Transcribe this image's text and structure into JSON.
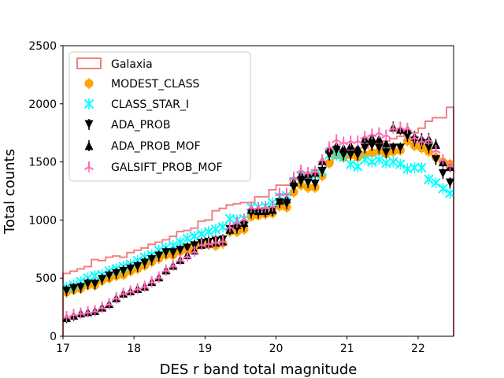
{
  "chart_data": {
    "type": "scatter",
    "title": "",
    "xlabel": "DES r band total magnitude",
    "ylabel": "Total counts",
    "xlim": [
      17,
      22.5
    ],
    "ylim": [
      0,
      2500
    ],
    "xticks": [
      "17",
      "18",
      "19",
      "20",
      "21",
      "22"
    ],
    "xtick_values": [
      17,
      18,
      19,
      20,
      21,
      22
    ],
    "yticks": [
      "0",
      "500",
      "1000",
      "1500",
      "2000",
      "2500"
    ],
    "ytick_values": [
      0,
      500,
      1000,
      1500,
      2000,
      2500
    ],
    "grid": false,
    "legend_position": "upper-left",
    "histogram": {
      "name": "Galaxia",
      "color": "#f28080",
      "bin_edges": [
        17.0,
        17.1,
        17.2,
        17.3,
        17.4,
        17.5,
        17.6,
        17.7,
        17.8,
        17.9,
        18.0,
        18.1,
        18.2,
        18.3,
        18.4,
        18.5,
        18.6,
        18.7,
        18.8,
        18.9,
        19.0,
        19.1,
        19.2,
        19.3,
        19.4,
        19.5,
        19.6,
        19.7,
        19.8,
        19.9,
        20.0,
        20.1,
        20.2,
        20.3,
        20.4,
        20.5,
        20.6,
        20.7,
        20.8,
        20.9,
        21.0,
        21.1,
        21.2,
        21.3,
        21.4,
        21.5,
        21.6,
        21.7,
        21.8,
        21.9,
        22.0,
        22.1,
        22.2,
        22.3,
        22.4,
        22.5
      ],
      "counts": [
        540,
        560,
        580,
        600,
        660,
        650,
        680,
        690,
        680,
        720,
        740,
        760,
        790,
        810,
        830,
        860,
        900,
        910,
        930,
        990,
        1000,
        1080,
        1100,
        1130,
        1140,
        1150,
        1150,
        1200,
        1200,
        1260,
        1300,
        1300,
        1360,
        1370,
        1400,
        1430,
        1450,
        1500,
        1530,
        1550,
        1590,
        1620,
        1620,
        1650,
        1660,
        1680,
        1700,
        1720,
        1750,
        1750,
        1790,
        1850,
        1880,
        1880,
        1970
      ]
    },
    "x": [
      17.05,
      17.15,
      17.25,
      17.35,
      17.45,
      17.55,
      17.65,
      17.75,
      17.85,
      17.95,
      18.05,
      18.15,
      18.25,
      18.35,
      18.45,
      18.55,
      18.65,
      18.75,
      18.85,
      18.95,
      19.05,
      19.15,
      19.25,
      19.35,
      19.45,
      19.55,
      19.65,
      19.75,
      19.85,
      19.95,
      20.05,
      20.15,
      20.25,
      20.35,
      20.45,
      20.55,
      20.65,
      20.75,
      20.85,
      20.95,
      21.05,
      21.15,
      21.25,
      21.35,
      21.45,
      21.55,
      21.65,
      21.75,
      21.85,
      21.95,
      22.05,
      22.15,
      22.25,
      22.35,
      22.45
    ],
    "series": [
      {
        "name": "MODEST_CLASS",
        "color": "#ffa500",
        "marker": "circle",
        "values": [
          380,
          400,
          410,
          440,
          440,
          480,
          500,
          520,
          530,
          560,
          580,
          610,
          640,
          670,
          700,
          700,
          730,
          740,
          760,
          790,
          790,
          780,
          800,
          900,
          900,
          920,
          1030,
          1040,
          1050,
          1060,
          1120,
          1110,
          1240,
          1300,
          1280,
          1280,
          1380,
          1490,
          1560,
          1540,
          1560,
          1540,
          1560,
          1580,
          1590,
          1570,
          1590,
          1600,
          1680,
          1640,
          1620,
          1590,
          1540,
          1500,
          1480
        ]
      },
      {
        "name": "CLASS_STAR_I",
        "color": "#00ffff",
        "marker": "x",
        "values": [
          420,
          440,
          470,
          500,
          520,
          530,
          560,
          580,
          600,
          620,
          650,
          680,
          700,
          740,
          760,
          780,
          810,
          840,
          860,
          880,
          900,
          920,
          940,
          1010,
          1000,
          1010,
          1110,
          1110,
          1120,
          1150,
          1200,
          1210,
          1330,
          1380,
          1380,
          1390,
          1420,
          1560,
          1560,
          1540,
          1480,
          1460,
          1520,
          1500,
          1520,
          1490,
          1500,
          1480,
          1440,
          1450,
          1450,
          1350,
          1320,
          1270,
          1230
        ]
      },
      {
        "name": "ADA_PROB",
        "color": "#000000",
        "marker": "triangle-down",
        "values": [
          390,
          410,
          420,
          450,
          450,
          490,
          520,
          540,
          560,
          580,
          600,
          630,
          660,
          690,
          720,
          720,
          740,
          760,
          780,
          800,
          810,
          820,
          830,
          920,
          930,
          950,
          1060,
          1060,
          1070,
          1080,
          1150,
          1140,
          1280,
          1330,
          1320,
          1310,
          1420,
          1560,
          1600,
          1560,
          1560,
          1560,
          1620,
          1640,
          1620,
          1580,
          1620,
          1620,
          1720,
          1680,
          1660,
          1620,
          1520,
          1400,
          1320
        ]
      },
      {
        "name": "ADA_PROB_MOF",
        "color": "#000000",
        "marker": "triangle-up",
        "values": [
          160,
          180,
          200,
          210,
          220,
          250,
          280,
          330,
          370,
          390,
          410,
          430,
          470,
          510,
          570,
          610,
          660,
          700,
          740,
          790,
          800,
          810,
          820,
          920,
          960,
          980,
          1090,
          1080,
          1080,
          1090,
          1170,
          1180,
          1330,
          1390,
          1400,
          1410,
          1510,
          1610,
          1640,
          1620,
          1640,
          1620,
          1700,
          1710,
          1700,
          1660,
          1800,
          1780,
          1780,
          1720,
          1700,
          1700,
          1650,
          1500,
          1460
        ]
      },
      {
        "name": "GALSIFT_PROB_MOF",
        "color": "#ff69b4",
        "marker": "tri",
        "values": [
          170,
          190,
          200,
          210,
          220,
          250,
          280,
          330,
          370,
          390,
          410,
          430,
          470,
          510,
          570,
          610,
          660,
          690,
          730,
          790,
          800,
          810,
          820,
          940,
          980,
          1010,
          1110,
          1110,
          1110,
          1120,
          1230,
          1230,
          1370,
          1430,
          1410,
          1420,
          1520,
          1630,
          1690,
          1670,
          1680,
          1680,
          1720,
          1740,
          1750,
          1730,
          1790,
          1800,
          1790,
          1710,
          1680,
          1690,
          1600,
          1520,
          1470
        ]
      }
    ]
  }
}
